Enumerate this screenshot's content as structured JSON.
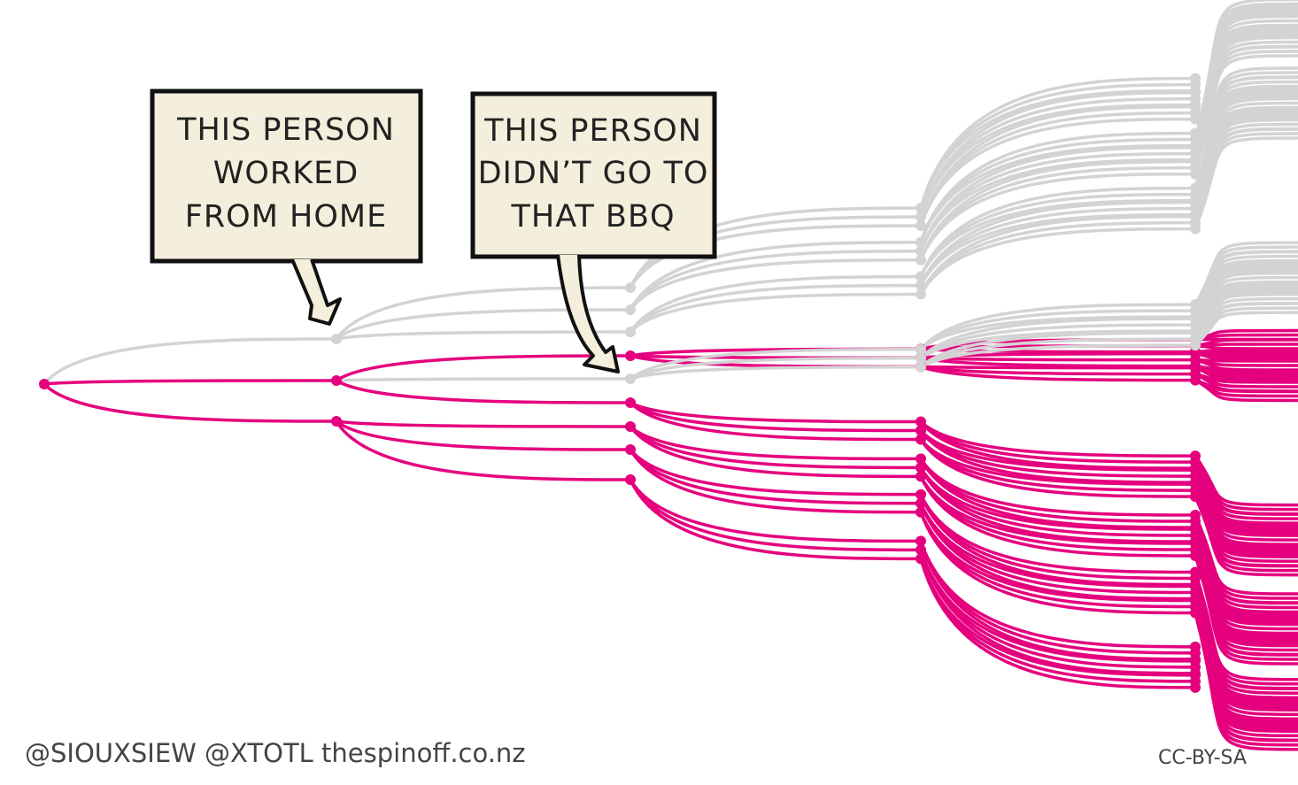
{
  "callouts": [
    {
      "lines": [
        "THIS PERSON",
        "WORKED",
        "FROM HOME"
      ]
    },
    {
      "lines": [
        "THIS PERSON",
        "DIDN’T GO TO",
        "THAT BBQ"
      ]
    }
  ],
  "footer": {
    "credit": "@SIOUXSIEW @XTOTL thespinoff.co.nz",
    "license": "CC-BY-SA"
  }
}
